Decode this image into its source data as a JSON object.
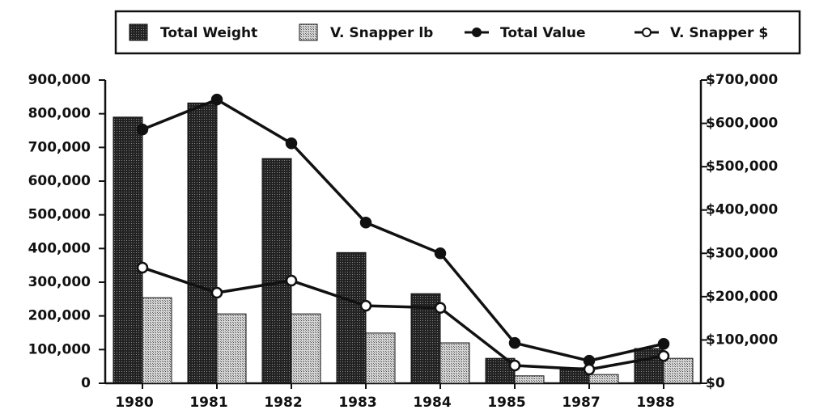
{
  "chart_data": {
    "type": "bar",
    "categories": [
      "1980",
      "1981",
      "1982",
      "1983",
      "1984",
      "1985",
      "1987",
      "1988"
    ],
    "series": [
      {
        "name": "Total Weight",
        "type": "bar",
        "color": "#2a2a2a",
        "values": [
          790000,
          832000,
          667000,
          388000,
          266000,
          74000,
          46000,
          103000
        ]
      },
      {
        "name": "V. Snapper lb",
        "type": "bar",
        "color": "#b0b0b0",
        "values": [
          254000,
          206000,
          206000,
          149000,
          120000,
          22000,
          26000,
          74000
        ]
      },
      {
        "name": "Total Value",
        "type": "line",
        "axis": "y2",
        "color": "#111111",
        "values": [
          586000,
          655000,
          554000,
          371000,
          300000,
          93000,
          52000,
          91000
        ]
      },
      {
        "name": "V. Snapper $",
        "type": "line",
        "axis": "y2",
        "color": "#111111",
        "marker_fill": "#ffffff",
        "values": [
          267000,
          209000,
          237000,
          179000,
          174000,
          41000,
          32000,
          63000
        ]
      }
    ],
    "ylim": [
      0,
      900000
    ],
    "yticks": [
      0,
      {
        "value": 100000,
        "label": "100,000"
      },
      {
        "value": 200000,
        "label": "200,000"
      },
      {
        "value": 300000,
        "label": "300,000"
      },
      {
        "value": 400000,
        "label": "400,000"
      },
      {
        "value": 500000,
        "label": "500,000"
      },
      {
        "value": 600000,
        "label": "600,000"
      },
      {
        "value": 700000,
        "label": "700,000"
      },
      {
        "value": 800000,
        "label": "800,000"
      },
      {
        "value": 900000,
        "label": "900,000"
      }
    ],
    "y2lim": [
      0,
      700000
    ],
    "y2ticks": [
      {
        "value": 0,
        "label": "$0"
      },
      {
        "value": 100000,
        "label": "$100,000"
      },
      {
        "value": 200000,
        "label": "$200,000"
      },
      {
        "value": 300000,
        "label": "$300,000"
      },
      {
        "value": 400000,
        "label": "$400,000"
      },
      {
        "value": 500000,
        "label": "$500,000"
      },
      {
        "value": 600000,
        "label": "$600,000"
      },
      {
        "value": 700000,
        "label": "$700,000"
      }
    ],
    "legend": "top"
  }
}
